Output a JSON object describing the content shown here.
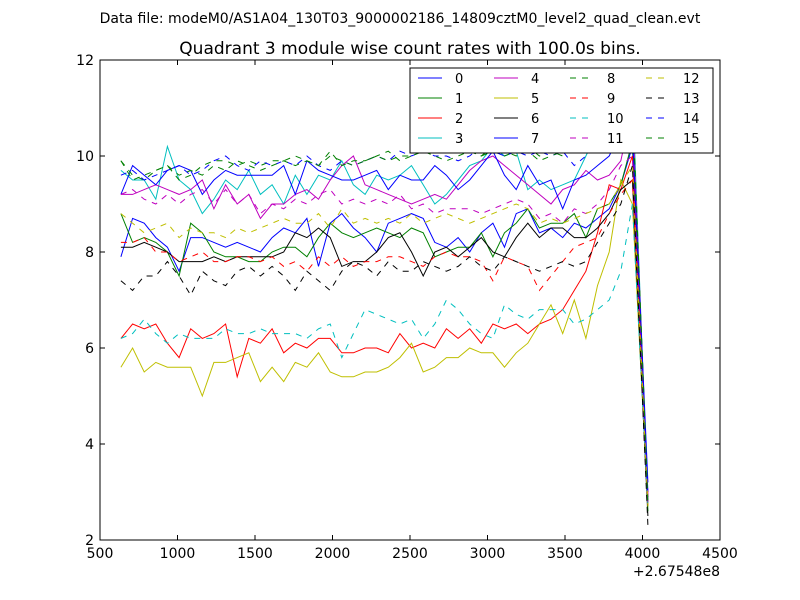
{
  "suptitle": "Data file: modeM0/AS1A04_130T03_9000002186_14809cztM0_level2_quad_clean.evt",
  "chart_data": {
    "type": "line",
    "title": "Quadrant 3 module wise count rates with 100.0s bins.",
    "xlabel": "",
    "ylabel": "",
    "xlim": [
      500,
      4500
    ],
    "ylim": [
      2,
      12
    ],
    "x_ticks": [
      500,
      1000,
      1500,
      2000,
      2500,
      3000,
      3500,
      4000,
      4500
    ],
    "y_ticks": [
      2,
      4,
      6,
      8,
      10,
      12
    ],
    "x_offset_label": "+2.67548e8",
    "legend_position": "upper right",
    "legend_columns": 4,
    "x": [
      635,
      710,
      785,
      860,
      935,
      1010,
      1085,
      1160,
      1235,
      1310,
      1385,
      1460,
      1535,
      1610,
      1685,
      1760,
      1835,
      1910,
      1985,
      2060,
      2135,
      2210,
      2285,
      2360,
      2435,
      2510,
      2585,
      2660,
      2735,
      2810,
      2885,
      2960,
      3035,
      3110,
      3185,
      3260,
      3335,
      3410,
      3485,
      3560,
      3635,
      3710,
      3785,
      3860,
      3935,
      4035
    ],
    "series": [
      {
        "name": "0",
        "color": "#0000ff",
        "dash": "solid",
        "values": [
          7.9,
          8.7,
          8.6,
          8.3,
          8.1,
          7.6,
          8.3,
          8.3,
          8.2,
          8.1,
          8.2,
          8.1,
          8.0,
          8.3,
          8.5,
          8.4,
          8.7,
          7.7,
          8.6,
          8.8,
          8.5,
          8.3,
          8.0,
          8.6,
          8.7,
          8.8,
          8.7,
          8.2,
          8.1,
          8.3,
          8.0,
          8.4,
          8.6,
          8.1,
          8.8,
          8.9,
          8.4,
          8.5,
          8.3,
          8.6,
          8.5,
          8.7,
          8.9,
          9.4,
          10.2,
          3.0
        ]
      },
      {
        "name": "1",
        "color": "#008000",
        "dash": "solid",
        "values": [
          8.8,
          8.2,
          8.3,
          8.2,
          8.0,
          7.5,
          8.6,
          8.4,
          8.0,
          7.9,
          7.9,
          7.8,
          7.8,
          8.0,
          8.1,
          8.1,
          7.9,
          8.3,
          8.6,
          8.4,
          8.3,
          8.4,
          8.5,
          8.4,
          8.3,
          8.5,
          8.4,
          7.9,
          8.0,
          8.1,
          8.1,
          8.4,
          7.9,
          8.4,
          8.6,
          8.9,
          8.5,
          8.6,
          8.6,
          8.8,
          8.3,
          8.9,
          9.0,
          9.4,
          10.3,
          2.8
        ]
      },
      {
        "name": "2",
        "color": "#ff0000",
        "dash": "solid",
        "values": [
          6.2,
          6.5,
          6.4,
          6.5,
          6.1,
          5.8,
          6.4,
          6.2,
          6.3,
          6.5,
          5.4,
          6.2,
          6.1,
          6.4,
          5.9,
          6.1,
          6.0,
          6.2,
          6.2,
          5.9,
          5.9,
          6.0,
          6.0,
          5.9,
          6.3,
          6.0,
          6.1,
          6.0,
          6.4,
          6.2,
          6.4,
          6.1,
          6.5,
          6.4,
          6.5,
          6.3,
          6.5,
          6.6,
          6.8,
          7.2,
          7.6,
          8.4,
          9.4,
          9.3,
          10.0,
          2.9
        ]
      },
      {
        "name": "3",
        "color": "#00bfbf",
        "dash": "solid",
        "values": [
          9.7,
          9.5,
          9.5,
          9.1,
          10.2,
          9.5,
          9.3,
          8.8,
          9.1,
          9.5,
          9.3,
          9.7,
          9.2,
          9.4,
          9.0,
          9.6,
          9.2,
          9.6,
          9.5,
          9.9,
          9.4,
          9.2,
          9.6,
          9.5,
          9.6,
          9.8,
          9.4,
          9.0,
          9.2,
          9.5,
          9.8,
          9.9,
          10.2,
          10.0,
          10.1,
          9.3,
          9.5,
          9.3,
          9.4,
          9.5,
          10.0,
          10.5,
          10.7,
          11.4,
          11.4,
          2.7
        ]
      },
      {
        "name": "4",
        "color": "#bf00bf",
        "dash": "solid",
        "values": [
          9.2,
          9.2,
          9.3,
          9.4,
          9.3,
          9.2,
          9.3,
          9.5,
          8.9,
          9.4,
          9.0,
          9.2,
          8.7,
          9.0,
          9.0,
          9.2,
          9.3,
          9.1,
          9.5,
          9.8,
          10.0,
          9.4,
          9.3,
          9.2,
          9.1,
          9.0,
          9.1,
          9.2,
          9.1,
          9.4,
          9.7,
          9.9,
          10.0,
          9.8,
          9.6,
          9.4,
          9.2,
          9.0,
          9.3,
          9.4,
          9.7,
          9.5,
          9.6,
          9.9,
          11.0,
          2.9
        ]
      },
      {
        "name": "5",
        "color": "#bfbf00",
        "dash": "solid",
        "values": [
          5.6,
          6.0,
          5.5,
          5.7,
          5.6,
          5.6,
          5.6,
          5.0,
          5.7,
          5.7,
          5.8,
          5.9,
          5.3,
          5.6,
          5.3,
          5.7,
          5.6,
          5.9,
          5.5,
          5.4,
          5.4,
          5.5,
          5.5,
          5.6,
          5.8,
          6.1,
          5.5,
          5.6,
          5.8,
          5.8,
          6.0,
          5.9,
          5.9,
          5.6,
          5.9,
          6.1,
          6.5,
          6.9,
          6.3,
          7.0,
          6.2,
          7.3,
          8.0,
          9.5,
          9.0,
          2.7
        ]
      },
      {
        "name": "6",
        "color": "#000000",
        "dash": "solid",
        "values": [
          8.1,
          8.1,
          8.2,
          8.1,
          8.0,
          7.8,
          7.8,
          7.8,
          7.9,
          7.8,
          7.9,
          7.9,
          7.9,
          7.9,
          8.0,
          8.4,
          8.3,
          8.5,
          8.3,
          7.7,
          7.8,
          7.8,
          8.0,
          8.3,
          8.4,
          8.0,
          7.5,
          8.0,
          8.1,
          7.9,
          8.1,
          8.3,
          8.0,
          7.9,
          8.3,
          8.6,
          8.3,
          8.5,
          8.5,
          8.3,
          8.3,
          8.5,
          8.8,
          9.3,
          9.5,
          2.5
        ]
      },
      {
        "name": "7",
        "color": "#0000ff",
        "dash": "solid",
        "values": [
          9.2,
          9.8,
          9.6,
          9.4,
          9.7,
          9.8,
          9.7,
          9.2,
          9.5,
          9.7,
          9.6,
          9.6,
          9.6,
          9.6,
          9.8,
          9.2,
          9.9,
          9.7,
          9.6,
          9.5,
          9.5,
          9.6,
          9.7,
          9.3,
          9.6,
          9.5,
          9.5,
          9.8,
          9.6,
          9.3,
          9.5,
          9.8,
          10.1,
          9.6,
          9.3,
          9.8,
          9.4,
          9.5,
          8.9,
          9.5,
          9.6,
          9.8,
          10.0,
          10.5,
          10.5,
          3.2
        ]
      },
      {
        "name": "8",
        "color": "#008000",
        "dash": "dashed",
        "values": [
          9.9,
          9.6,
          9.5,
          9.7,
          9.8,
          9.5,
          9.6,
          9.8,
          9.9,
          9.9,
          9.8,
          9.9,
          9.8,
          9.9,
          9.9,
          10.0,
          9.9,
          9.8,
          10.1,
          9.8,
          9.9,
          9.9,
          10.0,
          10.1,
          9.9,
          10.0,
          10.1,
          10.1,
          10.3,
          10.2,
          10.1,
          10.0,
          10.1,
          10.0,
          10.1,
          10.2,
          10.0,
          10.1,
          10.0,
          10.2,
          10.1,
          10.3,
          10.4,
          10.6,
          10.8,
          2.6
        ]
      },
      {
        "name": "9",
        "color": "#ff0000",
        "dash": "dashed",
        "values": [
          8.2,
          8.2,
          8.3,
          8.0,
          8.0,
          7.8,
          7.9,
          8.0,
          7.8,
          7.8,
          7.9,
          7.9,
          7.8,
          7.9,
          7.7,
          7.8,
          7.6,
          7.9,
          7.7,
          7.9,
          7.7,
          7.8,
          7.8,
          7.9,
          7.9,
          7.8,
          7.7,
          7.9,
          8.0,
          7.9,
          7.9,
          7.8,
          7.4,
          7.9,
          7.8,
          7.7,
          7.2,
          7.5,
          7.8,
          8.1,
          8.2,
          8.3,
          8.8,
          9.2,
          9.5,
          2.7
        ]
      },
      {
        "name": "10",
        "color": "#00bfbf",
        "dash": "dashed",
        "values": [
          6.2,
          6.3,
          6.6,
          6.3,
          6.1,
          6.3,
          6.2,
          6.2,
          6.2,
          6.4,
          6.3,
          6.3,
          6.4,
          6.3,
          6.3,
          6.3,
          6.2,
          6.4,
          6.5,
          5.8,
          6.3,
          6.8,
          6.7,
          6.6,
          6.5,
          6.6,
          6.2,
          6.5,
          7.0,
          6.8,
          6.5,
          6.3,
          6.2,
          6.9,
          6.7,
          6.6,
          6.8,
          6.8,
          6.8,
          6.5,
          6.6,
          6.8,
          7.0,
          7.6,
          9.0,
          2.7
        ]
      },
      {
        "name": "11",
        "color": "#bf00bf",
        "dash": "dashed",
        "values": [
          9.2,
          9.3,
          9.1,
          9.0,
          9.2,
          9.0,
          9.2,
          9.3,
          9.0,
          9.3,
          9.0,
          9.2,
          8.8,
          9.0,
          8.9,
          9.1,
          9.0,
          9.2,
          9.3,
          9.0,
          9.1,
          9.0,
          9.1,
          9.0,
          9.2,
          8.9,
          9.0,
          8.8,
          8.9,
          8.9,
          8.9,
          8.8,
          8.9,
          9.0,
          9.1,
          9.0,
          8.7,
          8.8,
          8.6,
          8.9,
          8.8,
          9.0,
          9.3,
          9.8,
          10.0,
          2.8
        ]
      },
      {
        "name": "12",
        "color": "#bfbf00",
        "dash": "dashed",
        "values": [
          8.8,
          8.6,
          8.4,
          8.5,
          8.6,
          8.3,
          8.5,
          8.4,
          8.4,
          8.3,
          8.5,
          8.4,
          8.5,
          8.6,
          8.7,
          8.6,
          8.6,
          8.8,
          8.5,
          8.9,
          8.6,
          8.7,
          8.6,
          8.7,
          8.6,
          8.8,
          8.6,
          8.7,
          8.8,
          8.7,
          8.6,
          8.7,
          8.8,
          8.9,
          9.0,
          8.9,
          8.6,
          8.7,
          8.6,
          8.7,
          8.8,
          8.9,
          9.0,
          9.4,
          9.8,
          2.7
        ]
      },
      {
        "name": "13",
        "color": "#000000",
        "dash": "dashed",
        "values": [
          7.4,
          7.2,
          7.5,
          7.5,
          7.8,
          7.5,
          7.1,
          7.6,
          7.4,
          7.3,
          7.6,
          7.7,
          7.5,
          7.7,
          7.5,
          7.2,
          7.6,
          7.4,
          7.2,
          7.6,
          7.8,
          7.7,
          7.5,
          7.8,
          7.6,
          7.6,
          7.8,
          7.7,
          7.6,
          7.7,
          7.9,
          7.7,
          7.6,
          7.9,
          7.8,
          7.7,
          7.6,
          7.7,
          7.8,
          7.7,
          7.8,
          8.2,
          8.6,
          9.0,
          9.8,
          2.3
        ]
      },
      {
        "name": "14",
        "color": "#0000ff",
        "dash": "dashed",
        "values": [
          9.6,
          9.7,
          9.5,
          9.6,
          9.7,
          9.8,
          9.6,
          9.7,
          9.9,
          10.0,
          9.8,
          9.7,
          9.9,
          9.8,
          9.9,
          9.8,
          10.0,
          9.8,
          9.7,
          9.9,
          9.8,
          9.9,
          10.0,
          9.9,
          10.1,
          10.0,
          10.1,
          10.0,
          10.0,
          9.9,
          10.0,
          10.2,
          10.1,
          10.0,
          10.1,
          10.0,
          10.1,
          10.0,
          10.1,
          9.8,
          10.0,
          10.2,
          10.3,
          10.5,
          10.6,
          2.9
        ]
      },
      {
        "name": "15",
        "color": "#008000",
        "dash": "dashed",
        "values": [
          9.9,
          9.5,
          9.6,
          9.7,
          9.8,
          9.6,
          9.7,
          9.6,
          9.8,
          9.7,
          9.9,
          9.8,
          9.7,
          9.8,
          9.9,
          9.8,
          9.9,
          9.8,
          10.0,
          9.9,
          9.8,
          9.9,
          10.0,
          9.9,
          10.0,
          10.0,
          10.1,
          10.0,
          9.9,
          10.0,
          10.1,
          10.0,
          10.2,
          10.1,
          10.0,
          10.1,
          9.9,
          10.0,
          10.1,
          10.2,
          10.1,
          10.3,
          10.4,
          10.7,
          11.2,
          2.8
        ]
      }
    ]
  }
}
